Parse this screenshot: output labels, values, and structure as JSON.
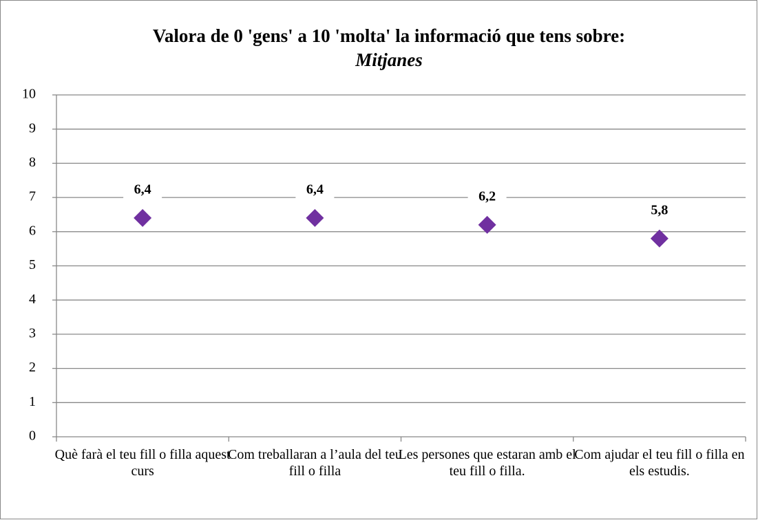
{
  "chart_data": {
    "type": "scatter",
    "title": "Valora de 0 'gens' a 10 'molta' la informació que tens sobre:",
    "subtitle": "Mitjanes",
    "categories": [
      "Què farà el teu fill o filla aquest curs",
      "Com treballaran a l’aula del teu fill o filla",
      "Les persones que estaran amb el teu fill o filla.",
      "Com ajudar el teu fill o filla en els estudis."
    ],
    "values": [
      6.4,
      6.4,
      6.2,
      5.8
    ],
    "value_labels": [
      "6,4",
      "6,4",
      "6,2",
      "5,8"
    ],
    "color": "#7030a0",
    "ylim": [
      0,
      10
    ],
    "yticks": [
      0,
      1,
      2,
      3,
      4,
      5,
      6,
      7,
      8,
      9,
      10
    ],
    "grid": true
  }
}
